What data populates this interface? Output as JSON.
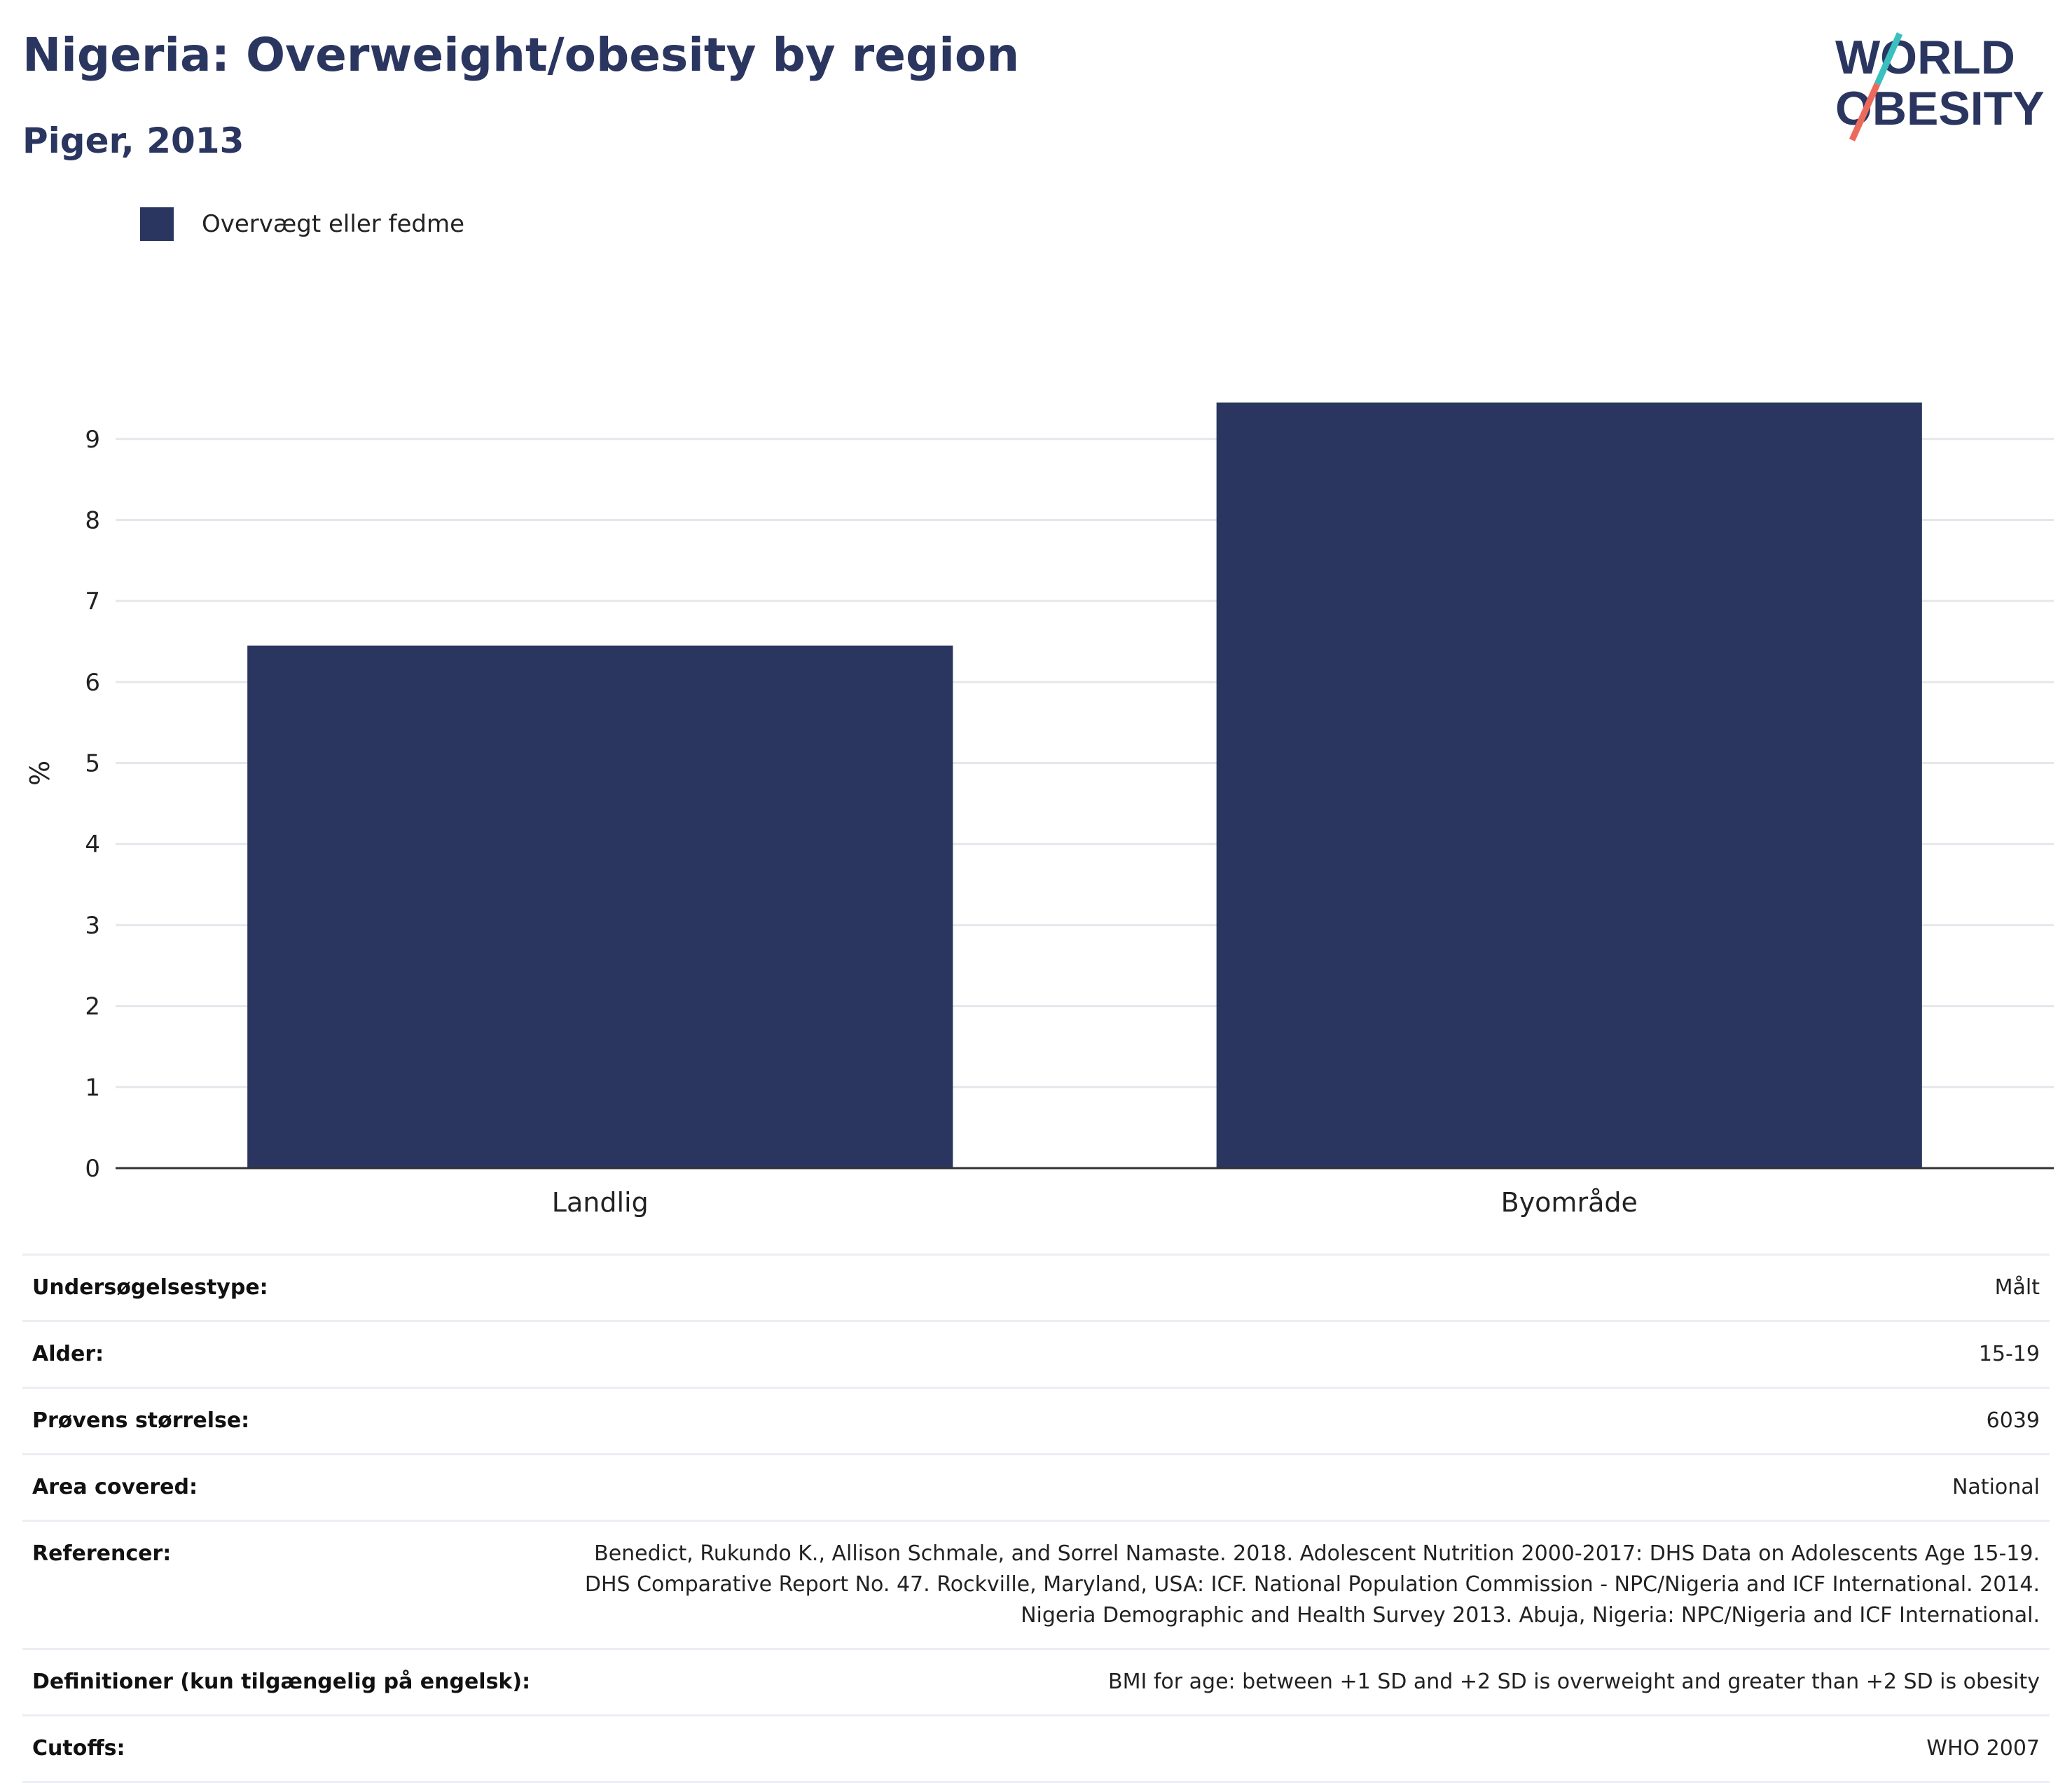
{
  "title": "Nigeria: Overweight/obesity by region",
  "subtitle": "Piger, 2013",
  "logo": {
    "line1": "WORLD",
    "line2": "OBESITY",
    "colors": {
      "text": "#2a365f",
      "accent_teal": "#3bbfbf",
      "accent_coral": "#ec6a5c"
    }
  },
  "colors": {
    "bar": "#2a365f",
    "grid": "#e6e6ec",
    "axis": "#333333"
  },
  "chart_data": {
    "type": "bar",
    "categories": [
      "Landlig",
      "Byområde"
    ],
    "series": [
      {
        "name": "Overvægt eller fedme",
        "values": [
          6.45,
          9.45
        ]
      }
    ],
    "ylabel": "%",
    "ylim": [
      0,
      9.75
    ],
    "yticks": [
      0,
      1,
      2,
      3,
      4,
      5,
      6,
      7,
      8,
      9
    ],
    "grid": true,
    "legend": "top-left"
  },
  "meta": [
    {
      "key": "Undersøgelsestype:",
      "value": "Målt"
    },
    {
      "key": "Alder:",
      "value": "15-19"
    },
    {
      "key": "Prøvens størrelse:",
      "value": "6039"
    },
    {
      "key": "Area covered:",
      "value": "National"
    },
    {
      "key": "Referencer:",
      "value": "Benedict, Rukundo K., Allison Schmale, and Sorrel Namaste. 2018. Adolescent Nutrition 2000-2017: DHS Data on Adolescents Age 15-19. DHS Comparative Report No. 47. Rockville, Maryland, USA: ICF. National Population Commission - NPC/Nigeria and ICF International. 2014. Nigeria Demographic and Health Survey 2013. Abuja, Nigeria: NPC/Nigeria and ICF International."
    },
    {
      "key": "Definitioner (kun tilgængelig på engelsk):",
      "value": "BMI for age: between +1 SD and +2 SD is overweight and greater than +2 SD is obesity"
    },
    {
      "key": "Cutoffs:",
      "value": "WHO 2007"
    }
  ]
}
